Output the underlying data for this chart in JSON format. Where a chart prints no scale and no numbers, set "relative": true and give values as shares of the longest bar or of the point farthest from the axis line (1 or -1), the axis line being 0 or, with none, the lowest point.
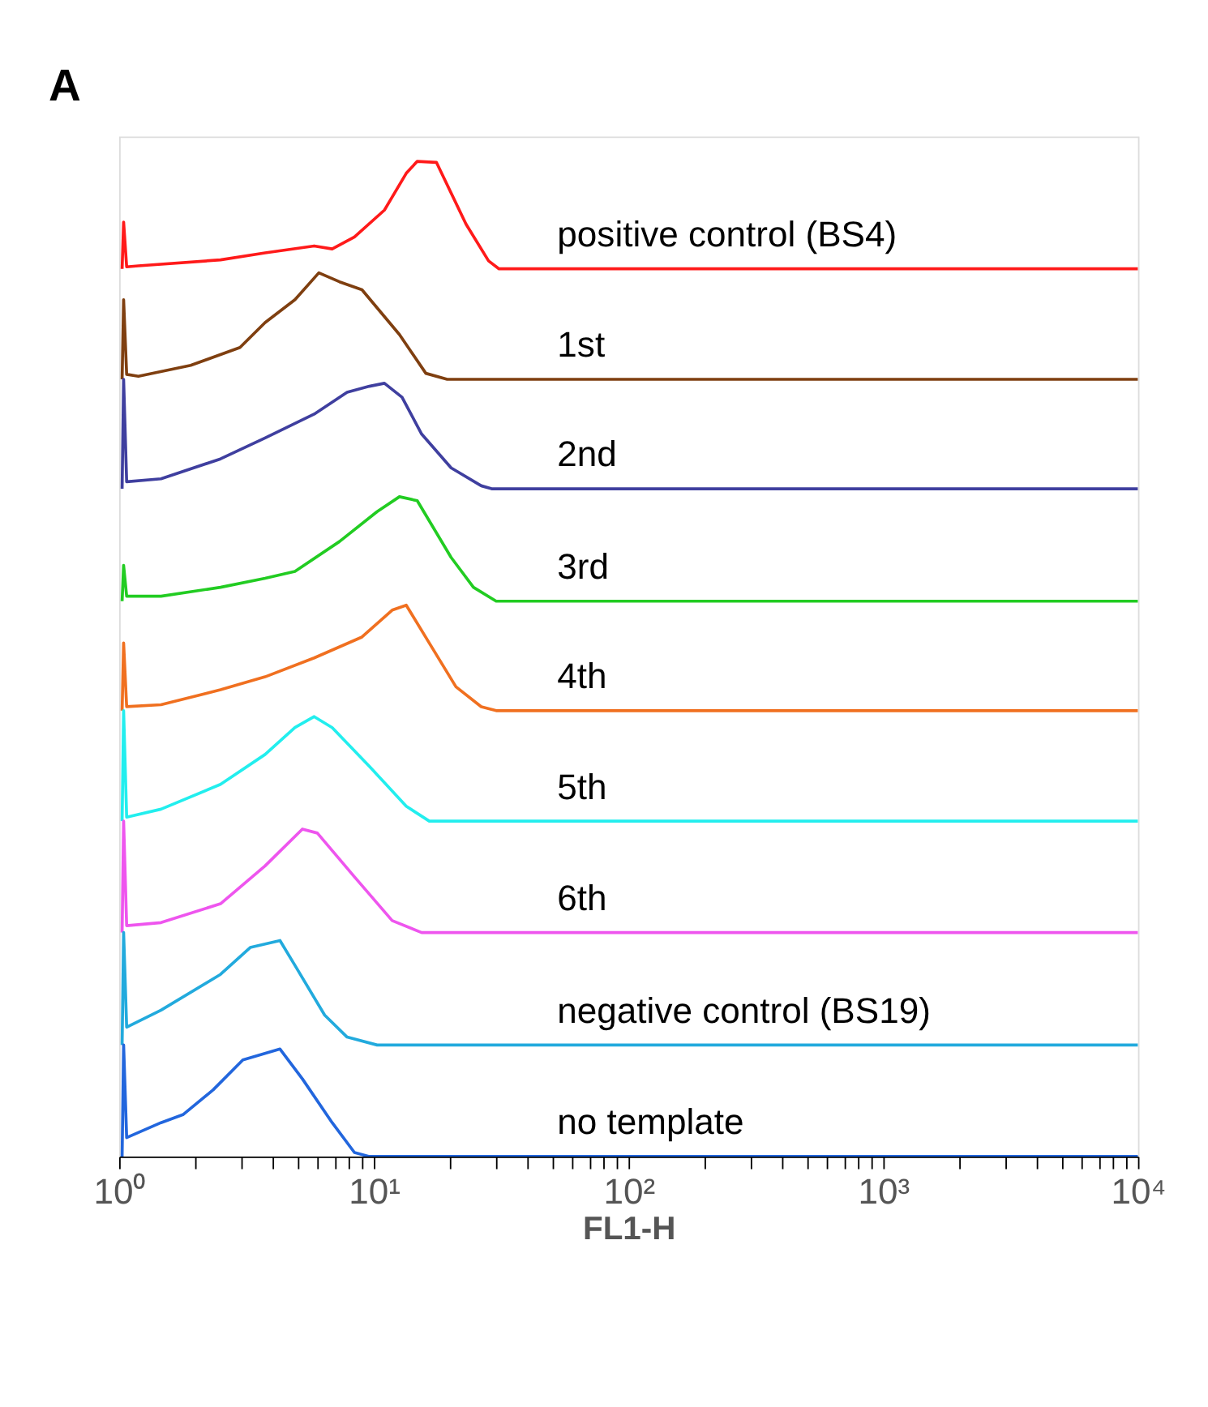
{
  "chart_data": {
    "type": "line",
    "title": "A",
    "xlabel": "FL1-H",
    "log": "x",
    "relative": true,
    "grid": false,
    "legend": false,
    "marker": "none",
    "line_style": "solid",
    "xlim": [
      1,
      10000
    ],
    "xticks": [
      {
        "value": 1,
        "label": "10⁰"
      },
      {
        "value": 2,
        "label": null
      },
      {
        "value": 3,
        "label": null
      },
      {
        "value": 4,
        "label": null
      },
      {
        "value": 5,
        "label": null
      },
      {
        "value": 6,
        "label": null
      },
      {
        "value": 7,
        "label": null
      },
      {
        "value": 8,
        "label": null
      },
      {
        "value": 9,
        "label": null
      },
      {
        "value": 10,
        "label": "10¹"
      },
      {
        "value": 20,
        "label": null
      },
      {
        "value": 30,
        "label": null
      },
      {
        "value": 40,
        "label": null
      },
      {
        "value": 50,
        "label": null
      },
      {
        "value": 60,
        "label": null
      },
      {
        "value": 70,
        "label": null
      },
      {
        "value": 80,
        "label": null
      },
      {
        "value": 90,
        "label": null
      },
      {
        "value": 100,
        "label": "10²"
      },
      {
        "value": 200,
        "label": null
      },
      {
        "value": 300,
        "label": null
      },
      {
        "value": 400,
        "label": null
      },
      {
        "value": 500,
        "label": null
      },
      {
        "value": 600,
        "label": null
      },
      {
        "value": 700,
        "label": null
      },
      {
        "value": 800,
        "label": null
      },
      {
        "value": 900,
        "label": null
      },
      {
        "value": 1000,
        "label": "10³"
      },
      {
        "value": 2000,
        "label": null
      },
      {
        "value": 3000,
        "label": null
      },
      {
        "value": 4000,
        "label": null
      },
      {
        "value": 5000,
        "label": null
      },
      {
        "value": 6000,
        "label": null
      },
      {
        "value": 7000,
        "label": null
      },
      {
        "value": 8000,
        "label": null
      },
      {
        "value": 9000,
        "label": null
      },
      {
        "value": 10000,
        "label": "10⁴"
      }
    ],
    "series": [
      {
        "name": "positive control (BS4)",
        "color": "#ff1a1a",
        "x": [
          1.027,
          1.041,
          1.07,
          1.19,
          2.5,
          3.74,
          5.83,
          6.86,
          8.39,
          11.0,
          13.4,
          14.8,
          17.6,
          23.0,
          28.2,
          31.0,
          10000
        ],
        "values": [
          0.892,
          0.939,
          0.894,
          0.895,
          0.901,
          0.908,
          0.915,
          0.912,
          0.924,
          0.951,
          0.988,
          1.0,
          0.999,
          0.937,
          0.9,
          0.892,
          0.892
        ]
      },
      {
        "name": "1st",
        "color": "#7f3f10",
        "x": [
          1.027,
          1.041,
          1.07,
          1.19,
          1.91,
          2.98,
          3.74,
          4.9,
          6.08,
          7.33,
          8.98,
          12.6,
          16.0,
          19.4,
          10000
        ],
        "values": [
          0.781,
          0.861,
          0.786,
          0.784,
          0.795,
          0.813,
          0.838,
          0.861,
          0.888,
          0.879,
          0.871,
          0.826,
          0.787,
          0.781,
          0.781
        ]
      },
      {
        "name": "2nd",
        "color": "#3f3f9f",
        "x": [
          1.027,
          1.041,
          1.07,
          1.46,
          2.5,
          3.74,
          5.83,
          7.85,
          9.6,
          11.0,
          12.9,
          15.4,
          20.1,
          26.4,
          29.0,
          10000
        ],
        "values": [
          0.671,
          0.781,
          0.678,
          0.681,
          0.701,
          0.722,
          0.746,
          0.768,
          0.774,
          0.777,
          0.763,
          0.726,
          0.692,
          0.674,
          0.671,
          0.671
        ]
      },
      {
        "name": "3rd",
        "color": "#22cc22",
        "x": [
          1.027,
          1.041,
          1.07,
          1.46,
          2.5,
          3.74,
          4.9,
          7.33,
          10.3,
          12.6,
          14.8,
          20.1,
          24.6,
          30.2,
          10000
        ],
        "values": [
          0.558,
          0.594,
          0.563,
          0.563,
          0.572,
          0.581,
          0.588,
          0.618,
          0.648,
          0.663,
          0.659,
          0.602,
          0.572,
          0.558,
          0.558
        ]
      },
      {
        "name": "4th",
        "color": "#f07020",
        "x": [
          1.027,
          1.041,
          1.07,
          1.46,
          2.5,
          3.74,
          5.83,
          8.98,
          11.8,
          13.4,
          16.5,
          21.0,
          26.4,
          30.2,
          10000
        ],
        "values": [
          0.448,
          0.516,
          0.452,
          0.454,
          0.469,
          0.482,
          0.501,
          0.522,
          0.549,
          0.554,
          0.516,
          0.472,
          0.452,
          0.448,
          0.448
        ]
      },
      {
        "name": "5th",
        "color": "#22eeee",
        "x": [
          1.027,
          1.041,
          1.07,
          1.46,
          2.5,
          3.74,
          4.9,
          5.83,
          6.86,
          9.6,
          13.4,
          16.5,
          10000
        ],
        "values": [
          0.337,
          0.448,
          0.341,
          0.349,
          0.374,
          0.404,
          0.431,
          0.442,
          0.431,
          0.392,
          0.352,
          0.337,
          0.337
        ]
      },
      {
        "name": "6th",
        "color": "#ee55ee",
        "x": [
          1.027,
          1.041,
          1.07,
          1.46,
          2.5,
          3.74,
          5.24,
          6.0,
          8.39,
          11.8,
          15.4,
          10000
        ],
        "values": [
          0.225,
          0.337,
          0.232,
          0.235,
          0.254,
          0.292,
          0.329,
          0.325,
          0.281,
          0.237,
          0.225,
          0.225
        ]
      },
      {
        "name": "negative control (BS19)",
        "color": "#22aadd",
        "x": [
          1.027,
          1.041,
          1.07,
          1.46,
          2.5,
          3.27,
          4.28,
          4.9,
          6.41,
          7.85,
          10.3,
          10000
        ],
        "values": [
          0.112,
          0.225,
          0.13,
          0.147,
          0.183,
          0.21,
          0.217,
          0.192,
          0.142,
          0.12,
          0.112,
          0.112
        ]
      },
      {
        "name": "no template",
        "color": "#2266dd",
        "x": [
          1.027,
          1.041,
          1.07,
          1.46,
          1.78,
          2.34,
          3.06,
          4.28,
          5.24,
          6.86,
          8.39,
          9.6,
          10000
        ],
        "values": [
          0.0,
          0.112,
          0.019,
          0.034,
          0.042,
          0.067,
          0.097,
          0.108,
          0.078,
          0.034,
          0.004,
          0.0,
          0.0
        ]
      }
    ]
  }
}
